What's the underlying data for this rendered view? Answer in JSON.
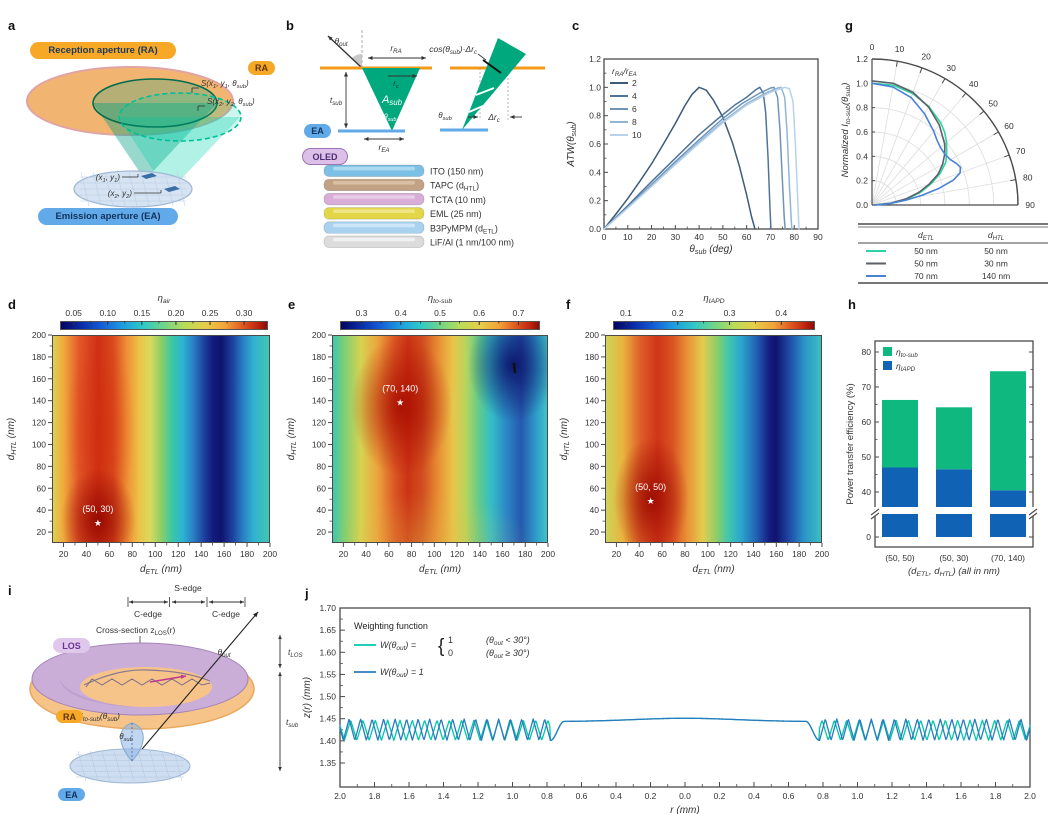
{
  "panel_a": {
    "letter": "a",
    "ra_pill": "Reception aperture (RA)",
    "ea_pill": "Emission aperture (EA)",
    "s1": "S(x_{1}, y_{1}, θ_{sub})",
    "s2": "S(x_{2}, y_{2}, θ_{sub})",
    "p1": "(x_{1}, y_{1})",
    "p2": "(x_{2}, y_{2})"
  },
  "panel_b": {
    "letter": "b",
    "ra_pill": "RA",
    "ea_pill": "EA",
    "oled_pill": "OLED",
    "theta_out": "θ_{out}",
    "r_ra": "r_{RA}",
    "r_c": "r_{c}",
    "a_sub": "A_{sub}",
    "theta_sub": "θ_{sub}",
    "t_sub": "t_{sub}",
    "r_ea": "r_{EA}",
    "cos_label": "cos(θ_{sub})·Δr_{c}",
    "theta_sub2": "θ_{sub}",
    "delta_rc": "Δr_{c}",
    "layers": [
      {
        "name": "ITO (150 nm)",
        "color": "#7cc0e6",
        "top": "#b2dcf2"
      },
      {
        "name": "TAPC (d_{HTL})",
        "color": "#c2a284",
        "top": "#dcc3a8"
      },
      {
        "name": "TCTA (10 nm)",
        "color": "#d8aed8",
        "top": "#ead0ea"
      },
      {
        "name": "EML (25 nm)",
        "color": "#e3d647",
        "top": "#f0e78c"
      },
      {
        "name": "B3PyMPM (d_{ETL})",
        "color": "#a8d2f0",
        "top": "#cfe7f8"
      },
      {
        "name": "LiF/Al (1 nm/100 nm)",
        "color": "#dcdcdc",
        "top": "#f2f2f2"
      }
    ]
  },
  "panel_c": {
    "letter": "c",
    "ylabel": "ATW(θ_{sub})",
    "xlabel": "θ_{sub} (deg)",
    "legend_title": "r_{RA}/r_{EA}",
    "xlim": [
      0,
      90
    ],
    "ylim": [
      0,
      1.2
    ],
    "xticks": [
      0,
      10,
      20,
      30,
      40,
      50,
      60,
      70,
      80,
      90
    ],
    "yticks": [
      "0.0",
      "0.2",
      "0.4",
      "0.6",
      "0.8",
      "1.0",
      "1.2"
    ],
    "series": [
      {
        "name": "2",
        "color": "#3d5a78",
        "points": [
          [
            0,
            0
          ],
          [
            5,
            0.105
          ],
          [
            10,
            0.215
          ],
          [
            15,
            0.335
          ],
          [
            20,
            0.46
          ],
          [
            25,
            0.6
          ],
          [
            30,
            0.745
          ],
          [
            34,
            0.87
          ],
          [
            37,
            0.95
          ],
          [
            40,
            1.0
          ],
          [
            43,
            0.98
          ],
          [
            46,
            0.91
          ],
          [
            50,
            0.79
          ],
          [
            54,
            0.61
          ],
          [
            57,
            0.44
          ],
          [
            60,
            0.24
          ],
          [
            62,
            0.09
          ],
          [
            63.5,
            0
          ]
        ]
      },
      {
        "name": "4",
        "color": "#4f7499",
        "points": [
          [
            0,
            0
          ],
          [
            10,
            0.165
          ],
          [
            20,
            0.335
          ],
          [
            30,
            0.5
          ],
          [
            40,
            0.665
          ],
          [
            48,
            0.78
          ],
          [
            55,
            0.875
          ],
          [
            60,
            0.93
          ],
          [
            64,
            0.985
          ],
          [
            65.5,
            1.0
          ],
          [
            67,
            0.96
          ],
          [
            68,
            0.82
          ],
          [
            69,
            0.5
          ],
          [
            69.8,
            0.15
          ],
          [
            70.2,
            0
          ]
        ]
      },
      {
        "name": "6",
        "color": "#6e94ba",
        "points": [
          [
            0,
            0
          ],
          [
            10,
            0.155
          ],
          [
            20,
            0.315
          ],
          [
            30,
            0.475
          ],
          [
            40,
            0.63
          ],
          [
            50,
            0.78
          ],
          [
            58,
            0.885
          ],
          [
            65,
            0.955
          ],
          [
            70,
            0.995
          ],
          [
            71.5,
            1.0
          ],
          [
            73,
            0.93
          ],
          [
            74,
            0.7
          ],
          [
            75,
            0.35
          ],
          [
            75.8,
            0.08
          ],
          [
            76.2,
            0
          ]
        ]
      },
      {
        "name": "8",
        "color": "#92b5d6",
        "points": [
          [
            0,
            0
          ],
          [
            10,
            0.15
          ],
          [
            20,
            0.305
          ],
          [
            30,
            0.46
          ],
          [
            40,
            0.615
          ],
          [
            50,
            0.76
          ],
          [
            60,
            0.885
          ],
          [
            68,
            0.96
          ],
          [
            73,
            0.995
          ],
          [
            74.5,
            1.0
          ],
          [
            76,
            0.93
          ],
          [
            77,
            0.68
          ],
          [
            78,
            0.3
          ],
          [
            78.8,
            0.05
          ],
          [
            79,
            0
          ]
        ]
      },
      {
        "name": "10",
        "color": "#b7d2ea",
        "points": [
          [
            0,
            0
          ],
          [
            10,
            0.148
          ],
          [
            20,
            0.3
          ],
          [
            30,
            0.455
          ],
          [
            40,
            0.605
          ],
          [
            50,
            0.75
          ],
          [
            60,
            0.875
          ],
          [
            70,
            0.965
          ],
          [
            76,
            1.0
          ],
          [
            78,
            0.99
          ],
          [
            79.5,
            0.9
          ],
          [
            80.5,
            0.6
          ],
          [
            81.5,
            0.2
          ],
          [
            82,
            0
          ]
        ]
      }
    ]
  },
  "panel_g": {
    "letter": "g",
    "ylabel": "Normalized I_{to-sub}(θ_{sub})",
    "rticks": [
      "0.0",
      "0.2",
      "0.4",
      "0.6",
      "0.8",
      "1.0",
      "1.2"
    ],
    "rlim": [
      0,
      1.2
    ],
    "angle_ticks": [
      0,
      10,
      20,
      30,
      40,
      50,
      60,
      70,
      80,
      90
    ],
    "legend": {
      "col1": "d_{ETL}",
      "col2": "d_{HTL}",
      "rows": [
        {
          "color": "#2ed3a5",
          "etl": "50 nm",
          "htl": "50 nm"
        },
        {
          "color": "#5b6166",
          "etl": "50 nm",
          "htl": "30 nm"
        },
        {
          "color": "#4a82d6",
          "etl": "70 nm",
          "htl": "140 nm"
        }
      ]
    },
    "series": [
      {
        "name": "50/50",
        "color": "#2ed3a5",
        "points": [
          [
            0,
            1.0
          ],
          [
            10,
            1.0
          ],
          [
            20,
            0.975
          ],
          [
            30,
            0.935
          ],
          [
            40,
            0.88
          ],
          [
            45,
            0.845
          ],
          [
            50,
            0.8
          ],
          [
            55,
            0.75
          ],
          [
            60,
            0.7
          ],
          [
            65,
            0.62
          ],
          [
            70,
            0.52
          ],
          [
            75,
            0.42
          ],
          [
            80,
            0.3
          ],
          [
            85,
            0.16
          ],
          [
            90,
            0.02
          ]
        ]
      },
      {
        "name": "50/30",
        "color": "#5b6166",
        "points": [
          [
            0,
            1.02
          ],
          [
            10,
            1.015
          ],
          [
            20,
            0.985
          ],
          [
            30,
            0.93
          ],
          [
            40,
            0.86
          ],
          [
            50,
            0.78
          ],
          [
            55,
            0.73
          ],
          [
            60,
            0.67
          ],
          [
            65,
            0.6
          ],
          [
            70,
            0.5
          ],
          [
            75,
            0.4
          ],
          [
            80,
            0.28
          ],
          [
            85,
            0.15
          ],
          [
            90,
            0.02
          ]
        ]
      },
      {
        "name": "70/140",
        "color": "#4a82d6",
        "points": [
          [
            0,
            1.0
          ],
          [
            10,
            0.985
          ],
          [
            20,
            0.94
          ],
          [
            30,
            0.865
          ],
          [
            40,
            0.79
          ],
          [
            45,
            0.755
          ],
          [
            50,
            0.735
          ],
          [
            55,
            0.73
          ],
          [
            60,
            0.745
          ],
          [
            64,
            0.775
          ],
          [
            67,
            0.79
          ],
          [
            70,
            0.77
          ],
          [
            73,
            0.7
          ],
          [
            76,
            0.57
          ],
          [
            79,
            0.42
          ],
          [
            82,
            0.28
          ],
          [
            86,
            0.13
          ],
          [
            90,
            0.02
          ]
        ]
      }
    ]
  },
  "panel_d": {
    "letter": "d",
    "cbar_title": "η_{air}",
    "cbar_ticks": [
      "0.05",
      "0.10",
      "0.15",
      "0.20",
      "0.25",
      "0.30"
    ],
    "cbar_min": 0.03,
    "cbar_max": 0.335,
    "xlabel": "d_{ETL} (nm)",
    "ylabel": "d_{HTL} (nm)",
    "xticks": [
      20,
      40,
      60,
      80,
      100,
      120,
      140,
      160,
      180,
      200
    ],
    "yticks": [
      20,
      40,
      60,
      80,
      100,
      120,
      140,
      160,
      180,
      200
    ],
    "annotation": "(50, 30)",
    "star": [
      50,
      30
    ],
    "star_glyph": "★"
  },
  "panel_e": {
    "letter": "e",
    "cbar_title": "η_{to-sub}",
    "cbar_ticks": [
      "0.3",
      "0.4",
      "0.5",
      "0.6",
      "0.7"
    ],
    "cbar_min": 0.245,
    "cbar_max": 0.755,
    "xlabel": "d_{ETL} (nm)",
    "ylabel": "d_{HTL} (nm)",
    "xticks": [
      20,
      40,
      60,
      80,
      100,
      120,
      140,
      160,
      180,
      200
    ],
    "yticks": [
      20,
      40,
      60,
      80,
      100,
      120,
      140,
      160,
      180,
      200
    ],
    "annotation": "(70, 140)",
    "star": [
      70,
      140
    ],
    "star_glyph": "★"
  },
  "panel_f": {
    "letter": "f",
    "cbar_title": "η_{IAPD}",
    "cbar_ticks": [
      "0.1",
      "0.2",
      "0.3",
      "0.4"
    ],
    "cbar_min": 0.075,
    "cbar_max": 0.465,
    "xlabel": "d_{ETL} (nm)",
    "ylabel": "d_{HTL} (nm)",
    "xticks": [
      20,
      40,
      60,
      80,
      100,
      120,
      140,
      160,
      180,
      200
    ],
    "yticks": [
      20,
      40,
      60,
      80,
      100,
      120,
      140,
      160,
      180,
      200
    ],
    "annotation": "(50, 50)",
    "star": [
      50,
      50
    ],
    "star_glyph": "★"
  },
  "panel_h": {
    "letter": "h",
    "ylabel": "Power transfer efficiency (%)",
    "xlabel": "(d_{ETL}, d_{HTL}) (all in nm)",
    "yticks": [
      0,
      40,
      50,
      60,
      70,
      80
    ],
    "legend": [
      {
        "label": "η_{to-sub}",
        "color": "#0fb87e"
      },
      {
        "label": "η_{IAPD}",
        "color": "#0f62b4"
      }
    ],
    "bars": [
      {
        "category": "(50, 50)",
        "iapd": 47.0,
        "total": 66.3
      },
      {
        "category": "(50, 30)",
        "iapd": 46.5,
        "total": 64.2
      },
      {
        "category": "(70, 140)",
        "iapd": 40.5,
        "total": 74.5
      }
    ]
  },
  "panel_i": {
    "letter": "i",
    "los_pill": "LOS",
    "ra_pill": "RA",
    "ea_pill": "EA",
    "s_edge": "S-edge",
    "c_edge_left": "C-edge",
    "c_edge_right": "C-edge",
    "cross_section": "Cross-section z_{LOS}(r)",
    "theta_out": "θ_{out}",
    "t_los": "t_{LOS}",
    "t_sub": "t_{sub}",
    "i_tosub": "I_{to-sub}(θ_{sub})",
    "theta_sub": "θ_{sub}"
  },
  "panel_j": {
    "letter": "j",
    "ylabel": "z(r) (mm)",
    "xlabel": "r (mm)",
    "yticks": [
      "1.35",
      "1.40",
      "1.45",
      "1.50",
      "1.55",
      "1.60",
      "1.65",
      "1.70"
    ],
    "ylim": [
      1.325,
      1.7
    ],
    "xtick_labels": [
      "2.0",
      "1.8",
      "1.6",
      "1.4",
      "1.2",
      "1.0",
      "0.8",
      "0.6",
      "0.4",
      "0.2",
      "0.0",
      "0.2",
      "0.4",
      "0.6",
      "0.8",
      "1.0",
      "1.2",
      "1.4",
      "1.6",
      "1.8",
      "2.0"
    ],
    "legend_title": "Weighting function",
    "legend1_w": "W(θ_{out}) = ",
    "brace": "{",
    "legend1_top_val": "1",
    "legend1_top_cond": "(θ_{out} < 30°)",
    "legend1_bot_val": "0",
    "legend1_bot_cond": "(θ_{out} ≥ 30°)",
    "legend2": "W(θ_{out}) = 1",
    "curves": [
      {
        "name": "W-cutoff-30deg",
        "color": "#00c9a7",
        "period": 0.0715,
        "phase": 0.3,
        "z_lo": 1.401,
        "z_hi": 1.447,
        "saw_start": 0.78,
        "dome_base": 1.4435,
        "dome_peak": 1.451
      },
      {
        "name": "W-equals-1",
        "color": "#2a7ac0",
        "period": 0.0667,
        "phase": 0.0,
        "z_lo": 1.401,
        "z_hi": 1.4495,
        "saw_start": 0.78,
        "dome_base": 1.4435,
        "dome_peak": 1.451
      }
    ]
  }
}
